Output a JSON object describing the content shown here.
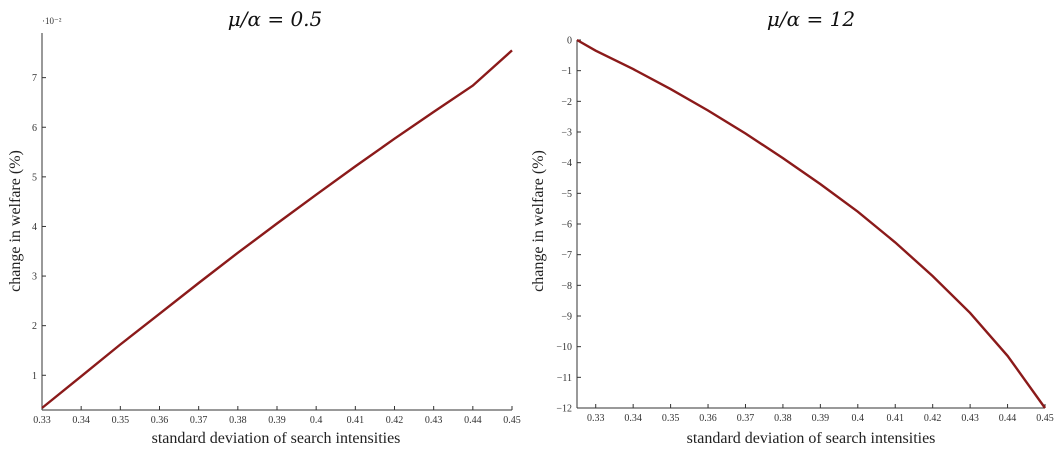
{
  "chart_data": [
    {
      "type": "line",
      "title": "μ/α = 0.5",
      "xlabel": "standard deviation of search intensities",
      "ylabel": "change in welfare (%)",
      "y_exponent": "·10⁻²",
      "xlim": [
        0.33,
        0.45
      ],
      "ylim": [
        0.3,
        7.9
      ],
      "x_ticks": [
        "0.33",
        "0.34",
        "0.35",
        "0.36",
        "0.37",
        "0.38",
        "0.39",
        "0.4",
        "0.41",
        "0.42",
        "0.43",
        "0.44",
        "0.45"
      ],
      "y_ticks": [
        "1",
        "2",
        "3",
        "4",
        "5",
        "6",
        "7"
      ],
      "color": "#8b1a1a",
      "series": [
        {
          "x": [
            0.33,
            0.34,
            0.35,
            0.36,
            0.37,
            0.38,
            0.39,
            0.4,
            0.41,
            0.42,
            0.43,
            0.44,
            0.45
          ],
          "values": [
            0.34,
            0.98,
            1.62,
            2.24,
            2.86,
            3.47,
            4.06,
            4.64,
            5.21,
            5.77,
            6.31,
            6.84,
            7.55
          ]
        }
      ]
    },
    {
      "type": "line",
      "title": "μ/α = 12",
      "xlabel": "standard deviation of search intensities",
      "ylabel": "change in welfare (%)",
      "xlim": [
        0.325,
        0.45
      ],
      "ylim": [
        -12,
        0
      ],
      "x_ticks": [
        "0.33",
        "0.34",
        "0.35",
        "0.36",
        "0.37",
        "0.38",
        "0.39",
        "0.4",
        "0.41",
        "0.42",
        "0.43",
        "0.44",
        "0.45"
      ],
      "y_ticks": [
        "0",
        "−1",
        "−2",
        "−3",
        "−4",
        "−5",
        "−6",
        "−7",
        "−8",
        "−9",
        "−10",
        "−11",
        "−12"
      ],
      "color": "#8b1a1a",
      "series": [
        {
          "x": [
            0.325,
            0.33,
            0.34,
            0.35,
            0.36,
            0.37,
            0.38,
            0.39,
            0.4,
            0.41,
            0.42,
            0.43,
            0.44,
            0.45
          ],
          "values": [
            0,
            -0.35,
            -0.95,
            -1.6,
            -2.3,
            -3.05,
            -3.85,
            -4.7,
            -5.6,
            -6.6,
            -7.7,
            -8.9,
            -10.3,
            -12.0
          ]
        }
      ]
    }
  ]
}
